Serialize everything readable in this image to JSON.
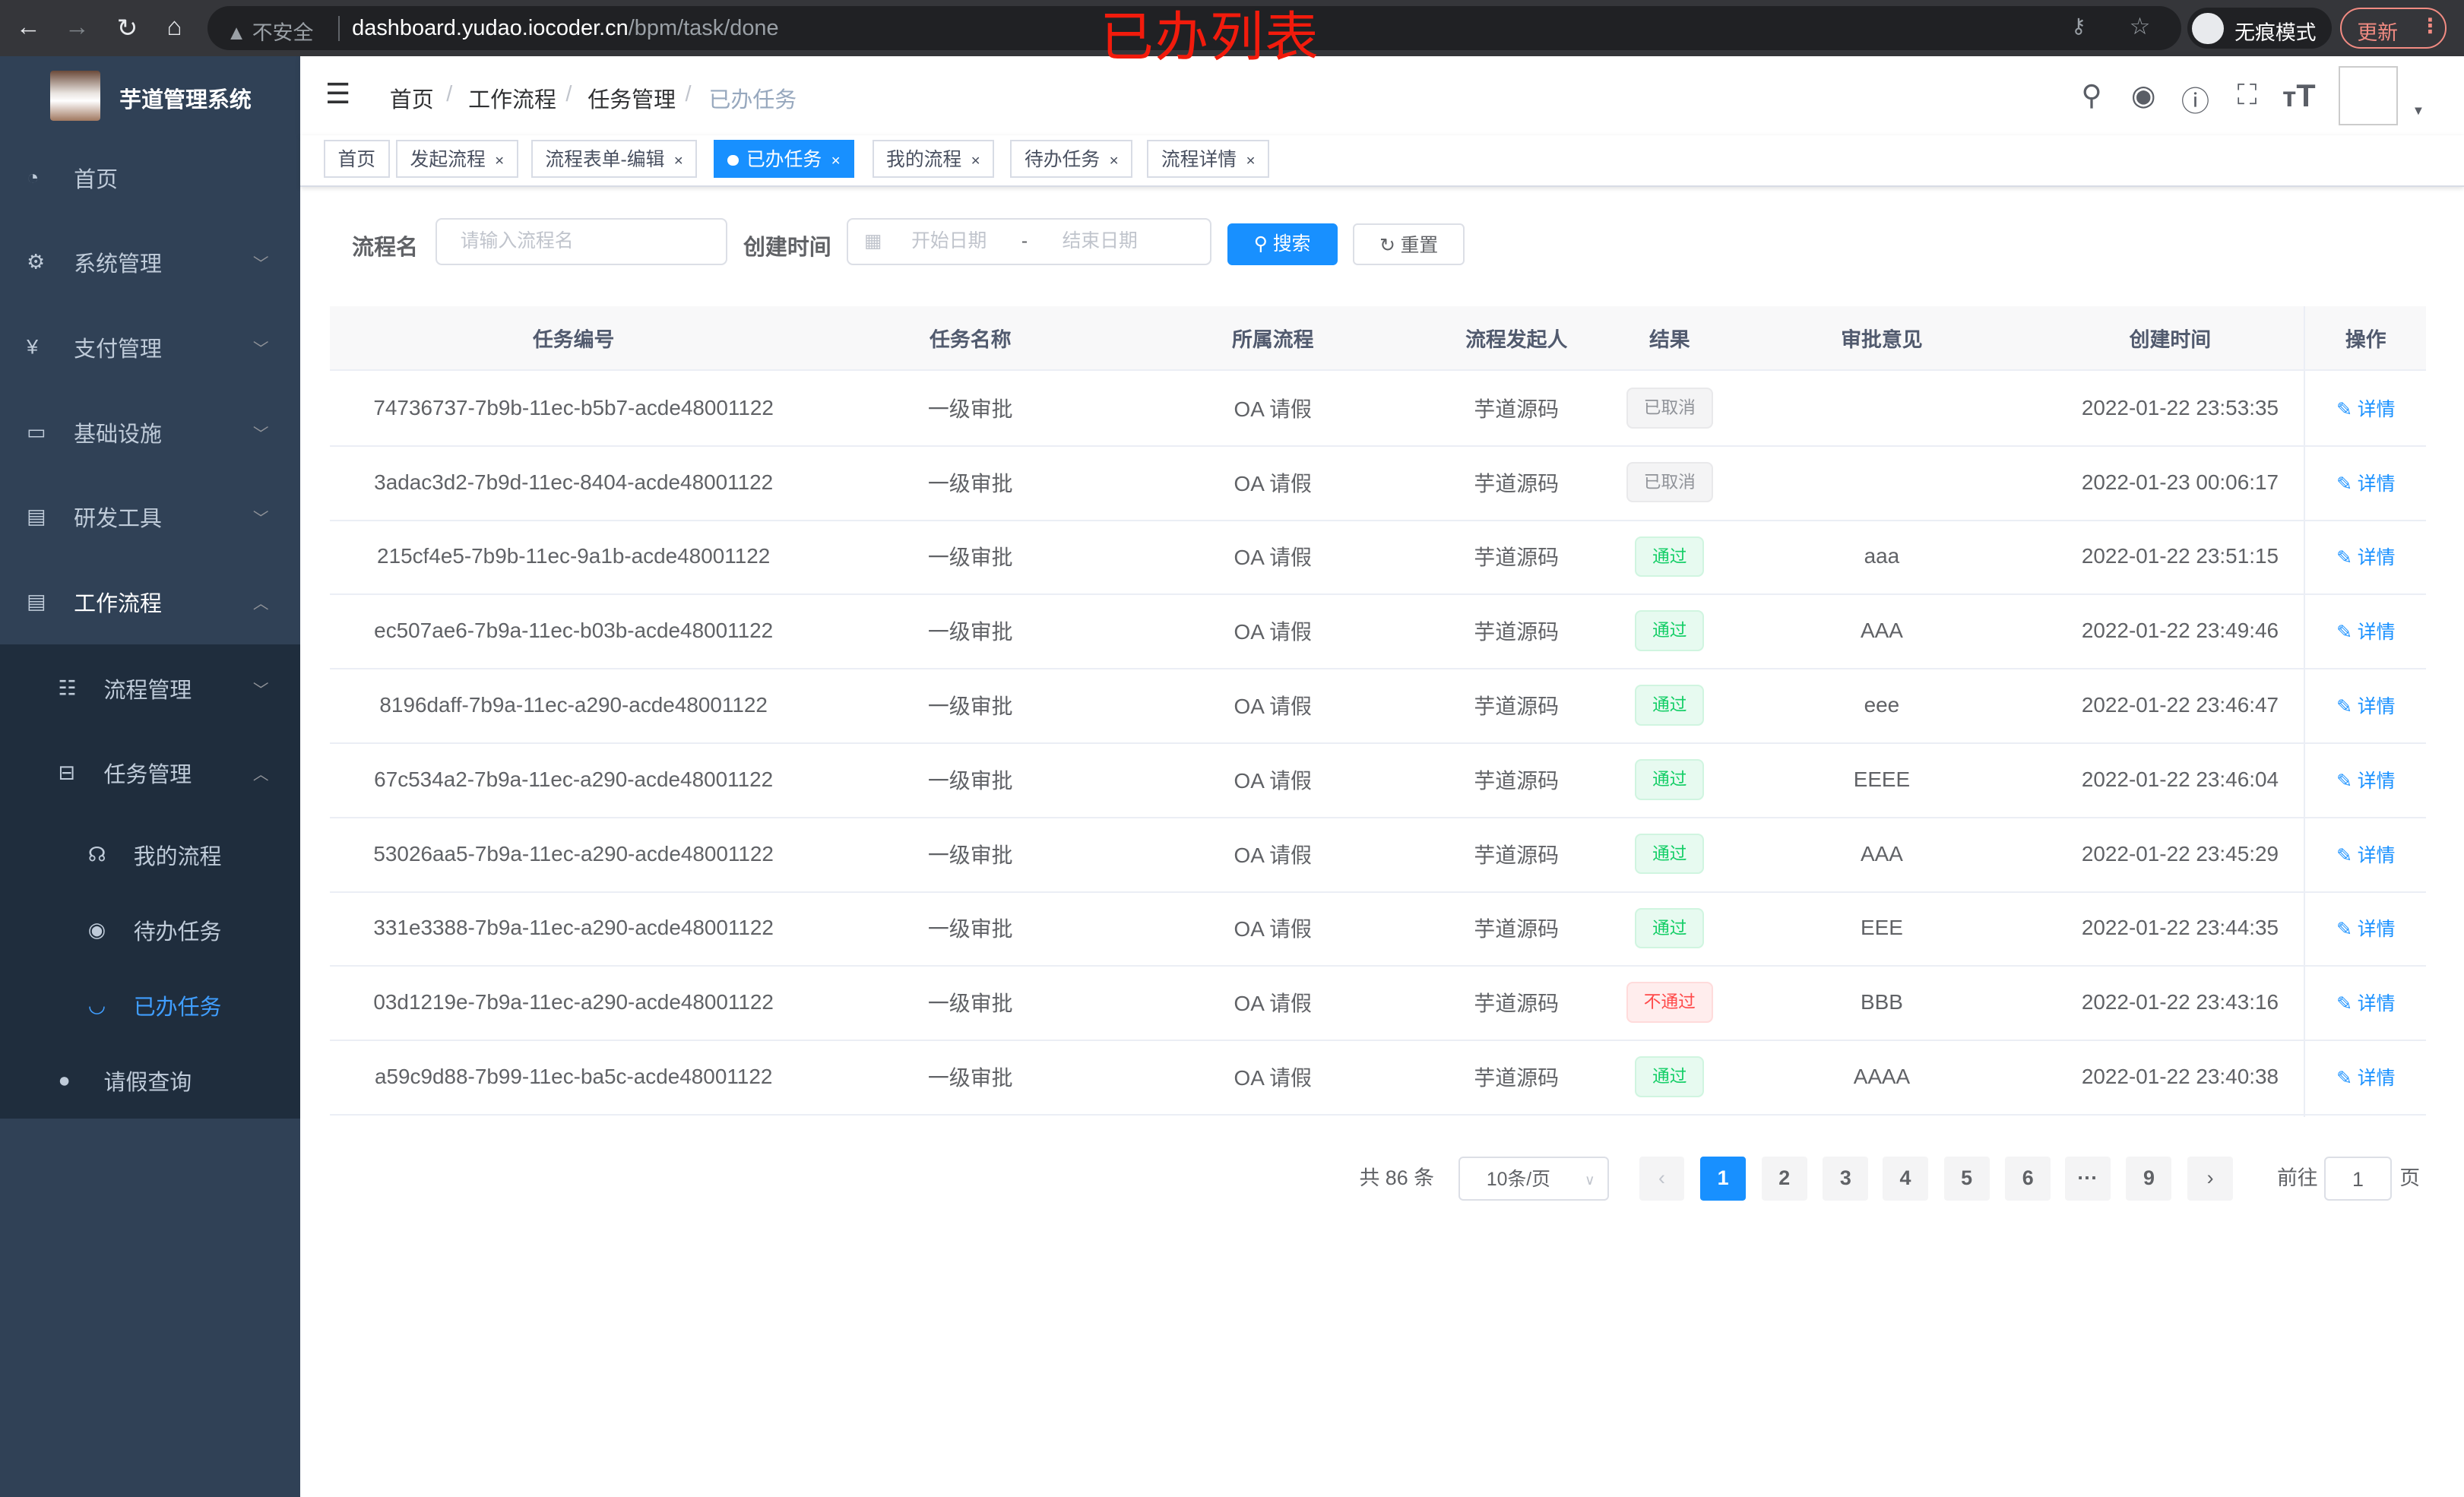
{
  "browser": {
    "security": "不安全",
    "url_host": "dashboard.yudao.iocoder.cn",
    "url_path": "/bpm/task/done",
    "incognito": "无痕模式",
    "update": "更新",
    "annotation": "已办列表"
  },
  "sidebar": {
    "title": "芋道管理系统",
    "items": [
      {
        "label": "首页",
        "icon": "dashboard-icon"
      },
      {
        "label": "系统管理",
        "icon": "gear-icon",
        "chevron": "down"
      },
      {
        "label": "支付管理",
        "icon": "yen-icon",
        "chevron": "down"
      },
      {
        "label": "基础设施",
        "icon": "monitor-icon",
        "chevron": "down"
      },
      {
        "label": "研发工具",
        "icon": "toolbox-icon",
        "chevron": "down"
      },
      {
        "label": "工作流程",
        "icon": "toolbox-icon",
        "chevron": "up"
      }
    ],
    "sub": [
      {
        "label": "流程管理",
        "icon": "list-icon",
        "chevron": "down"
      },
      {
        "label": "任务管理",
        "icon": "tree-icon",
        "chevron": "up"
      }
    ],
    "subsub": [
      {
        "label": "我的流程",
        "icon": "headset-icon"
      },
      {
        "label": "待办任务",
        "icon": "eye-icon"
      },
      {
        "label": "已办任务",
        "icon": "eye-closed-icon",
        "active": true
      }
    ],
    "last": {
      "label": "请假查询",
      "icon": "user-icon"
    }
  },
  "breadcrumb": [
    "首页",
    "工作流程",
    "任务管理",
    "已办任务"
  ],
  "tags": [
    {
      "label": "首页"
    },
    {
      "label": "发起流程",
      "closable": true
    },
    {
      "label": "流程表单-编辑",
      "closable": true
    },
    {
      "label": "已办任务",
      "closable": true,
      "active": true
    },
    {
      "label": "我的流程",
      "closable": true
    },
    {
      "label": "待办任务",
      "closable": true
    },
    {
      "label": "流程详情",
      "closable": true
    }
  ],
  "filter": {
    "name_label": "流程名",
    "name_placeholder": "请输入流程名",
    "time_label": "创建时间",
    "start_placeholder": "开始日期",
    "range_sep": "-",
    "end_placeholder": "结束日期",
    "search": "搜索",
    "reset": "重置"
  },
  "table": {
    "headers": [
      "任务编号",
      "任务名称",
      "所属流程",
      "流程发起人",
      "结果",
      "审批意见",
      "创建时间",
      "操作"
    ],
    "rows": [
      {
        "id": "74736737-7b9b-11ec-b5b7-acde48001122",
        "name": "一级审批",
        "process": "OA 请假",
        "starter": "芋道源码",
        "result": "已取消",
        "status": "cancel",
        "comment": "",
        "time": "2022-01-22 23:53:35"
      },
      {
        "id": "3adac3d2-7b9d-11ec-8404-acde48001122",
        "name": "一级审批",
        "process": "OA 请假",
        "starter": "芋道源码",
        "result": "已取消",
        "status": "cancel",
        "comment": "",
        "time": "2022-01-23 00:06:17"
      },
      {
        "id": "215cf4e5-7b9b-11ec-9a1b-acde48001122",
        "name": "一级审批",
        "process": "OA 请假",
        "starter": "芋道源码",
        "result": "通过",
        "status": "pass",
        "comment": "aaa",
        "time": "2022-01-22 23:51:15"
      },
      {
        "id": "ec507ae6-7b9a-11ec-b03b-acde48001122",
        "name": "一级审批",
        "process": "OA 请假",
        "starter": "芋道源码",
        "result": "通过",
        "status": "pass",
        "comment": "AAA",
        "time": "2022-01-22 23:49:46"
      },
      {
        "id": "8196daff-7b9a-11ec-a290-acde48001122",
        "name": "一级审批",
        "process": "OA 请假",
        "starter": "芋道源码",
        "result": "通过",
        "status": "pass",
        "comment": "eee",
        "time": "2022-01-22 23:46:47"
      },
      {
        "id": "67c534a2-7b9a-11ec-a290-acde48001122",
        "name": "一级审批",
        "process": "OA 请假",
        "starter": "芋道源码",
        "result": "通过",
        "status": "pass",
        "comment": "EEEE",
        "time": "2022-01-22 23:46:04"
      },
      {
        "id": "53026aa5-7b9a-11ec-a290-acde48001122",
        "name": "一级审批",
        "process": "OA 请假",
        "starter": "芋道源码",
        "result": "通过",
        "status": "pass",
        "comment": "AAA",
        "time": "2022-01-22 23:45:29"
      },
      {
        "id": "331e3388-7b9a-11ec-a290-acde48001122",
        "name": "一级审批",
        "process": "OA 请假",
        "starter": "芋道源码",
        "result": "通过",
        "status": "pass",
        "comment": "EEE",
        "time": "2022-01-22 23:44:35"
      },
      {
        "id": "03d1219e-7b9a-11ec-a290-acde48001122",
        "name": "一级审批",
        "process": "OA 请假",
        "starter": "芋道源码",
        "result": "不通过",
        "status": "fail",
        "comment": "BBB",
        "time": "2022-01-22 23:43:16"
      },
      {
        "id": "a59c9d88-7b99-11ec-ba5c-acde48001122",
        "name": "一级审批",
        "process": "OA 请假",
        "starter": "芋道源码",
        "result": "通过",
        "status": "pass",
        "comment": "AAAA",
        "time": "2022-01-22 23:40:38"
      }
    ],
    "action": "详情"
  },
  "pagination": {
    "total": "共 86 条",
    "page_size": "10条/页",
    "pages": [
      "1",
      "2",
      "3",
      "4",
      "5",
      "6",
      "···",
      "9"
    ],
    "current": "1",
    "goto_label": "前往",
    "goto_value": "1",
    "page_suffix": "页"
  },
  "colors": {
    "sidebar": "#304156",
    "submenu": "#1f2d3d",
    "primary": "#1890ff",
    "active_menu": "#409eff"
  }
}
